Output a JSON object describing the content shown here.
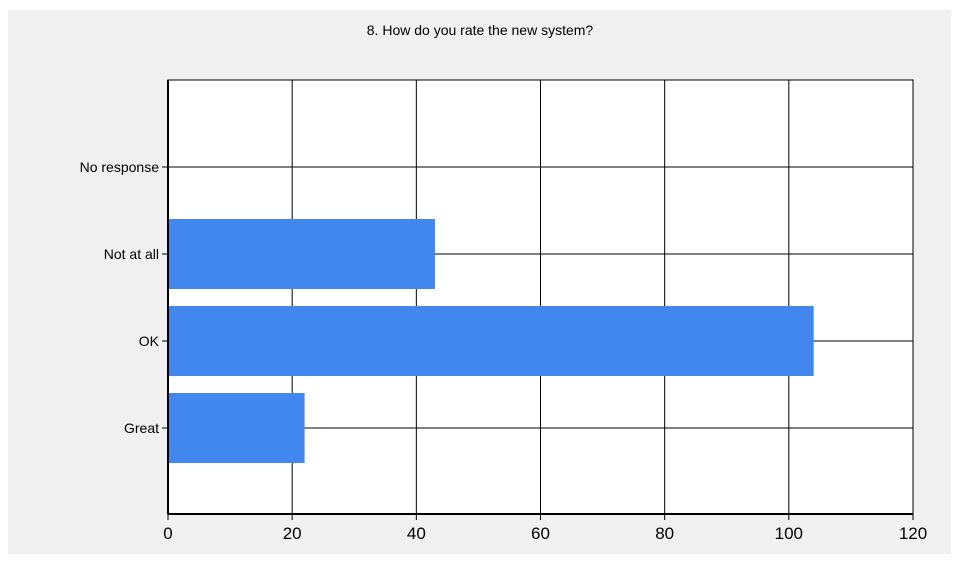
{
  "colors": {
    "bar": "#4287ed",
    "grid": "#000000",
    "panel": "#f0f0f0",
    "plot_bg": "#ffffff"
  },
  "chart_data": {
    "type": "bar",
    "orientation": "horizontal",
    "title": "8. How do you rate the new system?",
    "xlabel": "",
    "ylabel": "",
    "categories": [
      "No response",
      "Not at all",
      "OK",
      "Great"
    ],
    "values": [
      0,
      43,
      104,
      22
    ],
    "xlim": [
      0,
      120
    ],
    "x_ticks": [
      0,
      20,
      40,
      60,
      80,
      100,
      120
    ],
    "grid": true,
    "legend": "none"
  }
}
